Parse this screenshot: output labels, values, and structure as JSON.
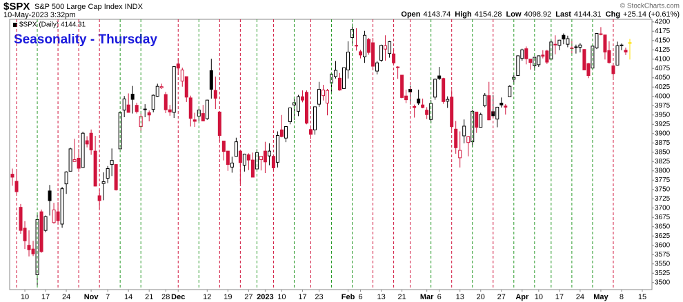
{
  "header": {
    "symbol": "$SPX",
    "name": "S&P 500 Large Cap Index INDX",
    "datetime": "10-May-2023 3:32pm",
    "watermark": "© StockCharts.com",
    "quote": [
      {
        "label": "Open",
        "value": "4143.74"
      },
      {
        "label": "High",
        "value": "4154.28"
      },
      {
        "label": "Low",
        "value": "4098.92"
      },
      {
        "label": "Last",
        "value": "4144.31"
      },
      {
        "label": "Chg",
        "value": "+25.14 (+0.61%)"
      }
    ]
  },
  "chart_data": {
    "type": "candlestick",
    "title": "Seasonality - Thursday",
    "legend": "$SPX (Daily) 4144.31",
    "up_color": "#000000",
    "down_color": "#d0143c",
    "last_color": "#ffe000",
    "thursday_up_color": "#2a9a2a",
    "thursday_down_color": "#d0143c",
    "categories": [
      null,
      null,
      null,
      "10",
      null,
      null,
      null,
      null,
      "17",
      null,
      null,
      null,
      null,
      "24",
      null,
      null,
      null,
      null,
      null,
      "Nov",
      null,
      null,
      null,
      "7",
      null,
      null,
      null,
      null,
      "14",
      null,
      null,
      null,
      null,
      "21",
      null,
      null,
      null,
      "28",
      null,
      null,
      "Dec",
      null,
      null,
      null,
      null,
      null,
      null,
      "12",
      null,
      null,
      null,
      null,
      "19",
      null,
      null,
      null,
      null,
      "27",
      null,
      null,
      null,
      "2023",
      null,
      null,
      null,
      "10",
      null,
      null,
      null,
      null,
      "17",
      null,
      null,
      null,
      "23",
      null,
      null,
      null,
      null,
      null,
      null,
      "Feb",
      null,
      null,
      "6",
      null,
      null,
      null,
      null,
      "13",
      null,
      null,
      null,
      null,
      "21",
      null,
      null,
      null,
      null,
      null,
      "Mar",
      null,
      null,
      "6",
      null,
      null,
      null,
      null,
      "13",
      null,
      null,
      null,
      null,
      "20",
      null,
      null,
      null,
      null,
      "27",
      null,
      null,
      null,
      null,
      "Apr",
      null,
      null,
      null,
      "10",
      null,
      null,
      null,
      null,
      "17",
      null,
      null,
      null,
      null,
      "24",
      null,
      null,
      null,
      null,
      "May",
      null,
      null,
      null,
      null,
      "8",
      null,
      null,
      null,
      null,
      "15"
    ],
    "open": [
      3791,
      3772,
      3702,
      3646,
      3600,
      3590,
      3521,
      3690,
      3640,
      3746,
      3661,
      3690,
      3657,
      3765,
      3799,
      3825,
      3834,
      3809,
      3881,
      3901,
      3853,
      3733,
      3766,
      3780,
      3817,
      3817,
      3859,
      3963,
      3977,
      4006,
      3976,
      3919,
      3966,
      3956,
      3965,
      4000,
      4023,
      4005,
      3964,
      3957,
      4087,
      4041,
      4053,
      3996,
      3937,
      3947,
      3954,
      3940,
      4069,
      4016,
      3958,
      3880,
      3853,
      3810,
      3839,
      3853,
      3815,
      3843,
      3829,
      3805,
      3830,
      3853,
      3840,
      3839,
      3823,
      3910,
      3888,
      3932,
      3977,
      3960,
      3999,
      4011,
      3911,
      3910,
      3979,
      4002,
      3982,
      4036,
      4053,
      4049,
      4021,
      4071,
      4158,
      4137,
      4120,
      4106,
      4153,
      4144,
      4068,
      4097,
      4127,
      4115,
      4114,
      4078,
      4057,
      4001,
      4019,
      3973,
      3993,
      3977,
      3963,
      3938,
      3998,
      4055,
      4048,
      3987,
      3998,
      3912,
      3835,
      3894,
      3876,
      3878,
      3958,
      3917,
      3975,
      4002,
      3959,
      3939,
      3982,
      3974,
      3999,
      4046,
      4056,
      4102,
      4128,
      4100,
      4082,
      4085,
      4111,
      4122,
      4100,
      4140,
      4137,
      4164,
      4140,
      4130,
      4133,
      4132,
      4126,
      4088,
      4076,
      4130,
      4166,
      4165,
      4123,
      4082,
      4084,
      4136,
      4124,
      4143.74,
      null,
      null,
      null
    ],
    "high": [
      3806,
      3798,
      3711,
      3665,
      3640,
      3612,
      3685,
      3696,
      3680,
      3762,
      3714,
      3716,
      3757,
      3799,
      3862,
      3886,
      3859,
      3905,
      3893,
      3911,
      3894,
      3750,
      3796,
      3813,
      3860,
      3818,
      3959,
      4001,
      4008,
      4028,
      3983,
      3954,
      3979,
      3962,
      4005,
      4034,
      4034,
      4012,
      3977,
      4080,
      4101,
      4077,
      4053,
      4002,
      3956,
      3966,
      3977,
      3991,
      4101,
      4053,
      3958,
      3880,
      3854,
      3838,
      3889,
      3853,
      3846,
      3847,
      3849,
      3858,
      3840,
      3878,
      3874,
      3839,
      3906,
      3950,
      3919,
      3970,
      3997,
      4004,
      4016,
      4016,
      3922,
      3972,
      4039,
      4031,
      4020,
      4061,
      4095,
      4063,
      4077,
      4148,
      4195,
      4183,
      4125,
      4176,
      4157,
      4157,
      4095,
      4139,
      4164,
      4149,
      4125,
      4081,
      4057,
      4018,
      4029,
      3978,
      4018,
      3994,
      3971,
      3990,
      4048,
      4079,
      4050,
      4000,
      4017,
      3934,
      3906,
      3938,
      3894,
      3964,
      3958,
      3956,
      4009,
      4039,
      4003,
      3972,
      3997,
      3979,
      4030,
      4057,
      4110,
      4128,
      4134,
      4100,
      4107,
      4110,
      4124,
      4125,
      4151,
      4164,
      4152,
      4169,
      4163,
      4149,
      4139,
      4143,
      4127,
      4090,
      4138,
      4170,
      4186,
      4165,
      4148,
      4082,
      4147,
      4142,
      4131,
      4154.28,
      null,
      null,
      null
    ],
    "low": [
      3760,
      3738,
      3631,
      3590,
      3570,
      3571,
      3491,
      3580,
      3635,
      3680,
      3658,
      3657,
      3647,
      3738,
      3799,
      3824,
      3803,
      3808,
      3863,
      3843,
      3758,
      3698,
      3721,
      3767,
      3786,
      3747,
      3859,
      3944,
      3956,
      3954,
      3954,
      3906,
      3944,
      3933,
      3957,
      3998,
      4020,
      3955,
      3948,
      3942,
      4057,
      4026,
      3985,
      3919,
      3918,
      3934,
      3933,
      3937,
      3994,
      3966,
      3879,
      3828,
      3800,
      3795,
      3839,
      3765,
      3798,
      3802,
      3783,
      3805,
      3801,
      3794,
      3815,
      3802,
      3809,
      3890,
      3877,
      3925,
      3937,
      3947,
      3984,
      3925,
      3885,
      3897,
      3972,
      3989,
      3949,
      4013,
      4048,
      4015,
      4021,
      4048,
      4141,
      4123,
      4102,
      4090,
      4112,
      4070,
      4059,
      4093,
      4096,
      4104,
      4088,
      4047,
      3995,
      3982,
      3978,
      3943,
      3977,
      3968,
      3939,
      3928,
      3991,
      4044,
      3980,
      3969,
      3909,
      3846,
      3809,
      3874,
      3839,
      3864,
      3902,
      3917,
      3971,
      3936,
      3943,
      3917,
      3970,
      3951,
      3999,
      4032,
      4056,
      4096,
      4086,
      4072,
      4069,
      4079,
      4102,
      4087,
      4100,
      4113,
      4124,
      4140,
      4132,
      4114,
      4115,
      4118,
      4072,
      4049,
      4072,
      4127,
      4164,
      4099,
      4088,
      4049,
      4084,
      4124,
      4111,
      4098.92,
      null,
      null,
      null
    ],
    "close": [
      3783,
      3744,
      3640,
      3612,
      3588,
      3577,
      3669,
      3583,
      3677,
      3720,
      3695,
      3666,
      3752,
      3797,
      3859,
      3830,
      3807,
      3901,
      3872,
      3856,
      3759,
      3720,
      3771,
      3806,
      3828,
      3749,
      3956,
      3993,
      3957,
      3992,
      3959,
      3946,
      3965,
      3950,
      4003,
      4027,
      4026,
      3964,
      3958,
      4080,
      4076,
      4071,
      3998,
      3941,
      3933,
      3963,
      3934,
      3990,
      4019,
      3995,
      3895,
      3852,
      3817,
      3821,
      3878,
      3822,
      3845,
      3829,
      3783,
      3849,
      3839,
      3824,
      3853,
      3808,
      3895,
      3892,
      3919,
      3969,
      3983,
      3999,
      3990,
      3928,
      3898,
      3972,
      4019,
      4017,
      4016,
      4060,
      4070,
      4017,
      4077,
      4119,
      4180,
      4136,
      4111,
      4164,
      4118,
      4081,
      4090,
      4137,
      4136,
      4147,
      4090,
      4079,
      3997,
      3991,
      4012,
      3970,
      3982,
      3970,
      3951,
      3981,
      4046,
      4048,
      3986,
      3992,
      3919,
      3862,
      3855,
      3920,
      3892,
      3960,
      3917,
      3951,
      4003,
      3937,
      3948,
      3971,
      3977,
      3971,
      4027,
      4051,
      4109,
      4125,
      4101,
      4091,
      4105,
      4109,
      4108,
      4092,
      4146,
      4138,
      4151,
      4154,
      4155,
      4130,
      4133,
      4138,
      4071,
      4056,
      4135,
      4169,
      4168,
      4119,
      4091,
      4061,
      4136,
      4138,
      4119,
      4144.31,
      null,
      null,
      null
    ],
    "thursdays": [
      1,
      6,
      11,
      16,
      21,
      26,
      31,
      40,
      45,
      50,
      55,
      59,
      63,
      68,
      72,
      77,
      82,
      87,
      92,
      96,
      101,
      106,
      111,
      116,
      121,
      126,
      130,
      135,
      140,
      145
    ],
    "ylim": [
      3481,
      4207
    ],
    "yticks": [
      3500,
      3525,
      3550,
      3575,
      3600,
      3625,
      3650,
      3675,
      3700,
      3725,
      3750,
      3775,
      3800,
      3825,
      3850,
      3875,
      3900,
      3925,
      3950,
      3975,
      4000,
      4025,
      4050,
      4075,
      4100,
      4125,
      4150,
      4175,
      4200
    ]
  }
}
